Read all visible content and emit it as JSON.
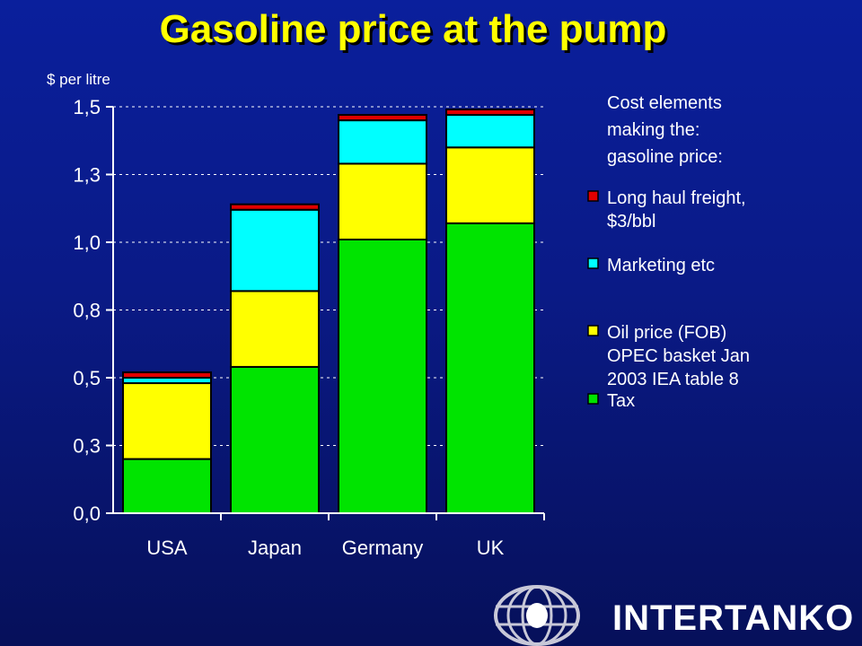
{
  "title": "Gasoline price at the pump",
  "logo": {
    "text": "INTERTANKO",
    "icon": "globe-icon"
  },
  "colors": {
    "background": "#0a1a86",
    "title": "#ffff00",
    "tax": "#00e400",
    "oil": "#ffff00",
    "marketing": "#00ffff",
    "freight": "#e00000"
  },
  "chart_data": {
    "type": "bar",
    "stacked": true,
    "ylabel": "$ per litre",
    "ylim": [
      0,
      1.5
    ],
    "yticks": [
      0.0,
      0.25,
      0.5,
      0.75,
      1.0,
      1.25,
      1.5
    ],
    "ytick_labels": [
      "0,0",
      "0,3",
      "0,5",
      "0,8",
      "1,0",
      "1,3",
      "1,5"
    ],
    "grid": true,
    "legend_position": "right",
    "legend_title": [
      "Cost elements",
      "making the:",
      "gasoline price:"
    ],
    "categories": [
      "USA",
      "Japan",
      "Germany",
      "UK"
    ],
    "series": [
      {
        "name": "Tax",
        "key": "tax",
        "values": [
          0.2,
          0.54,
          1.01,
          1.07
        ]
      },
      {
        "name": "Oil price (FOB) OPEC basket Jan 2003 IEA table 8",
        "key": "oil",
        "values": [
          0.28,
          0.28,
          0.28,
          0.28
        ]
      },
      {
        "name": "Marketing etc",
        "key": "marketing",
        "values": [
          0.02,
          0.3,
          0.16,
          0.12
        ]
      },
      {
        "name": "Long haul freight, $3/bbl",
        "key": "freight",
        "values": [
          0.02,
          0.02,
          0.02,
          0.02
        ]
      }
    ],
    "legend_entries": [
      {
        "key": "freight",
        "lines": [
          "Long haul freight,",
          "$3/bbl"
        ]
      },
      {
        "key": "marketing",
        "lines": [
          "Marketing etc"
        ]
      },
      {
        "key": "oil",
        "lines": [
          "Oil price (FOB)",
          "OPEC basket Jan",
          "2003 IEA table 8"
        ]
      },
      {
        "key": "tax",
        "lines": [
          "Tax"
        ]
      }
    ]
  }
}
